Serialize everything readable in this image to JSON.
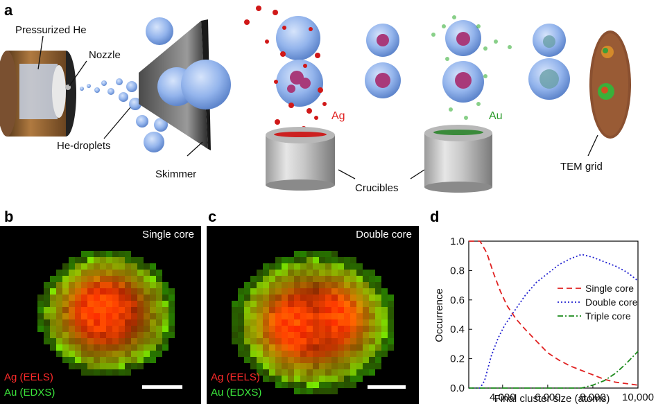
{
  "panels": {
    "a": "a",
    "b": "b",
    "c": "c",
    "d": "d"
  },
  "panel_a": {
    "pressurized_he": "Pressurized He",
    "nozzle": "Nozzle",
    "he_droplets": "He-droplets",
    "skimmer": "Skimmer",
    "ag": "Ag",
    "au": "Au",
    "crucibles": "Crucibles",
    "tem_grid": "TEM grid"
  },
  "panel_b": {
    "title": "Single core",
    "ag_label": "Ag (EELS)",
    "au_label": "Au (EDXS)"
  },
  "panel_c": {
    "title": "Double core",
    "ag_label": "Ag (EELS)",
    "au_label": "Au (EDXS)"
  },
  "colors": {
    "ag": "#e02020",
    "au": "#2a9a2a",
    "helium": "#7aa4e6",
    "map_ag": "#ff2a2a",
    "map_au": "#3ce63c"
  },
  "chart_data": {
    "type": "line",
    "xlabel": "Final cluster size (atoms)",
    "ylabel": "Occurrence",
    "xlim": [
      2500,
      10000
    ],
    "ylim": [
      0,
      1.0
    ],
    "xticks": [
      4000,
      6000,
      8000,
      10000
    ],
    "xtick_labels": [
      "4,000",
      "6,000",
      "8,000",
      "10,000"
    ],
    "yticks": [
      0,
      0.2,
      0.4,
      0.6,
      0.8,
      1.0
    ],
    "ytick_labels": [
      "0.0",
      "0.2",
      "0.4",
      "0.6",
      "0.8",
      "1.0"
    ],
    "legend_position": "middle-right",
    "series": [
      {
        "name": "Single core",
        "style": "dashed",
        "color": "#e02020",
        "x": [
          2500,
          3000,
          3300,
          3600,
          3900,
          4200,
          4600,
          5000,
          5500,
          6000,
          6500,
          7000,
          7500,
          8000,
          8500,
          9000,
          9500,
          10000
        ],
        "y": [
          1.0,
          1.0,
          0.92,
          0.78,
          0.66,
          0.56,
          0.47,
          0.4,
          0.32,
          0.24,
          0.19,
          0.15,
          0.12,
          0.09,
          0.06,
          0.04,
          0.03,
          0.02
        ]
      },
      {
        "name": "Double core",
        "style": "dotted",
        "color": "#2020d0",
        "x": [
          2500,
          3000,
          3200,
          3500,
          3800,
          4100,
          4500,
          5000,
          5500,
          6000,
          6500,
          7000,
          7500,
          8000,
          8500,
          9000,
          9500,
          10000
        ],
        "y": [
          0.0,
          0.0,
          0.05,
          0.22,
          0.34,
          0.43,
          0.52,
          0.63,
          0.72,
          0.78,
          0.84,
          0.88,
          0.91,
          0.89,
          0.86,
          0.83,
          0.79,
          0.73
        ]
      },
      {
        "name": "Triple core",
        "style": "dashdot",
        "color": "#1a8a1a",
        "x": [
          2500,
          7500,
          8000,
          8500,
          9000,
          9500,
          10000
        ],
        "y": [
          0.0,
          0.0,
          0.02,
          0.05,
          0.1,
          0.17,
          0.25
        ]
      }
    ]
  }
}
